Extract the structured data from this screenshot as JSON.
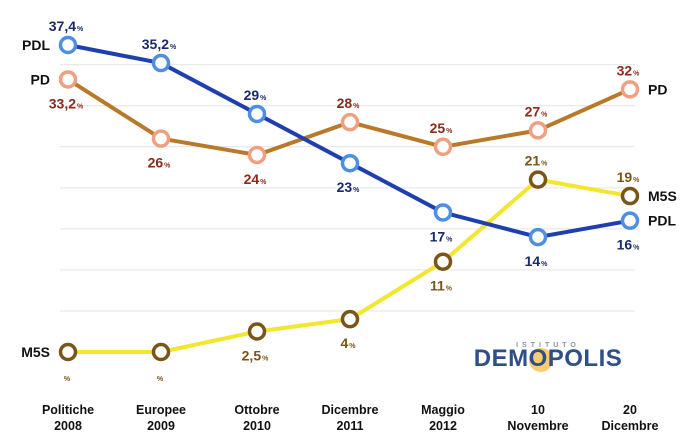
{
  "chart_data": {
    "type": "line",
    "title": "",
    "xlabel": "",
    "ylabel": "",
    "ylim": [
      0,
      40
    ],
    "grid": true,
    "categories": [
      [
        "Politiche",
        "2008"
      ],
      [
        "Europee",
        "2009"
      ],
      [
        "Ottobre",
        "2010"
      ],
      [
        "Dicembre",
        "2011"
      ],
      [
        "Maggio",
        "2012"
      ],
      [
        "10",
        "Novembre"
      ],
      [
        "20",
        "Dicembre"
      ]
    ],
    "series": [
      {
        "name": "PDL",
        "color": "#1f3faf",
        "marker_fill": "#ffffff",
        "marker_stroke": "#4f8fe0",
        "values": [
          37.4,
          35.2,
          29,
          23,
          17,
          14,
          16
        ],
        "labels": [
          "37,4",
          "35,2",
          "29",
          "23",
          "17",
          "14",
          "16"
        ],
        "label_color": "#1a2a6b",
        "label_pos": [
          "top",
          "top",
          "top",
          "bottom",
          "bottom",
          "bottom",
          "bottom"
        ],
        "left_label": "PDL",
        "right_label": "PDL"
      },
      {
        "name": "PD",
        "color": "#b87a2a",
        "marker_fill": "#ffffff",
        "marker_stroke": "#f0a080",
        "values": [
          33.2,
          26,
          24,
          28,
          25,
          27,
          32
        ],
        "labels": [
          "33,2",
          "26",
          "24",
          "28",
          "25",
          "27",
          "32"
        ],
        "label_color": "#8b2a1a",
        "label_pos": [
          "bottom",
          "bottom",
          "bottom",
          "top",
          "top",
          "top",
          "top"
        ],
        "left_label": "PD",
        "right_label": "PD"
      },
      {
        "name": "M5S",
        "color": "#f3e62e",
        "marker_fill": "#ffffff",
        "marker_stroke": "#7a5518",
        "values": [
          0,
          0,
          2.5,
          4,
          11,
          21,
          19
        ],
        "labels": [
          "",
          "",
          "2,5",
          "4",
          "11",
          "21",
          "19"
        ],
        "label_color": "#7a5518",
        "label_pos": [
          "bottom",
          "bottom",
          "bottom",
          "bottom",
          "bottom",
          "top",
          "top"
        ],
        "left_label": "M5S",
        "right_label": "M5S"
      }
    ],
    "value_suffix": "%"
  },
  "logo": {
    "small_text": "ISTITUTO",
    "name": "DEMOPOLIS"
  }
}
